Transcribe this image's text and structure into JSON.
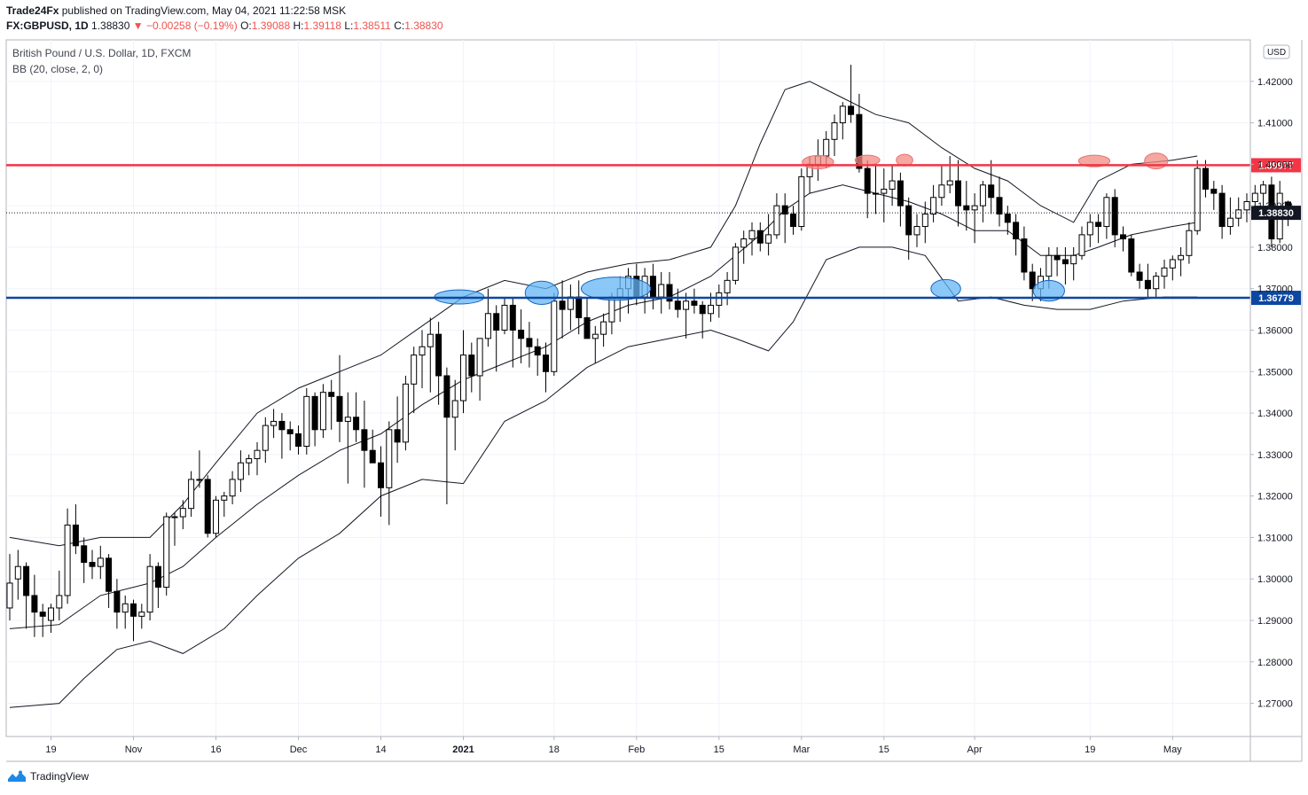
{
  "header": {
    "author": "Trade24Fx",
    "published_text": "published on TradingView.com, May 04, 2021 11:22:58 MSK",
    "symbol": "FX:GBPUSD, 1D",
    "last": "1.38830",
    "change": "▼ −0.00258 (−0.19%)",
    "o_label": "O:",
    "o_value": "1.39088",
    "h_label": "H:",
    "h_value": "1.39118",
    "l_label": "L:",
    "l_value": "1.38511",
    "c_label": "C:",
    "c_value": "1.38830"
  },
  "legend": {
    "title": "British Pound / U.S. Dollar, 1D, FXCM",
    "indicator": "BB (20, close, 2, 0)"
  },
  "footer": {
    "brand": "TradingView"
  },
  "colors": {
    "resistance": "#f23645",
    "support": "#0d47a1",
    "red_marker_fill": "#f28b82",
    "blue_marker_fill": "#64b5f6",
    "bull": "#ffffff",
    "bear": "#000000"
  },
  "chart_data": {
    "type": "candlestick",
    "title": "British Pound / U.S. Dollar, 1D, FXCM",
    "currency_label": "USD",
    "ylim": [
      1.262,
      1.43
    ],
    "y_ticks": [
      "1.27000",
      "1.28000",
      "1.29000",
      "1.30000",
      "1.31000",
      "1.32000",
      "1.33000",
      "1.34000",
      "1.35000",
      "1.36000",
      "1.37000",
      "1.38000",
      "1.39000",
      "1.40000",
      "1.41000",
      "1.42000"
    ],
    "x_ticks": [
      {
        "label": "19",
        "index": 5
      },
      {
        "label": "Nov",
        "index": 15
      },
      {
        "label": "16",
        "index": 25
      },
      {
        "label": "Dec",
        "index": 35
      },
      {
        "label": "14",
        "index": 45
      },
      {
        "label": "2021",
        "index": 55,
        "bold": true
      },
      {
        "label": "18",
        "index": 66
      },
      {
        "label": "Feb",
        "index": 76
      },
      {
        "label": "15",
        "index": 86
      },
      {
        "label": "Mar",
        "index": 96
      },
      {
        "label": "15",
        "index": 106
      },
      {
        "label": "Apr",
        "index": 117
      },
      {
        "label": "19",
        "index": 131
      },
      {
        "label": "May",
        "index": 141
      }
    ],
    "resistance": {
      "label": "1.39977",
      "value": 1.39977
    },
    "support": {
      "label": "1.36779",
      "value": 1.36779
    },
    "last_price": {
      "label": "1.38830",
      "value": 1.3883
    },
    "candles": [
      [
        1.293,
        1.306,
        1.29,
        1.299
      ],
      [
        1.3,
        1.307,
        1.295,
        1.303
      ],
      [
        1.303,
        1.304,
        1.288,
        1.296
      ],
      [
        1.296,
        1.301,
        1.286,
        1.292
      ],
      [
        1.292,
        1.294,
        1.286,
        1.291
      ],
      [
        1.29,
        1.294,
        1.287,
        1.293
      ],
      [
        1.293,
        1.302,
        1.29,
        1.296
      ],
      [
        1.296,
        1.317,
        1.294,
        1.313
      ],
      [
        1.313,
        1.318,
        1.306,
        1.308
      ],
      [
        1.308,
        1.31,
        1.299,
        1.304
      ],
      [
        1.304,
        1.307,
        1.3,
        1.303
      ],
      [
        1.303,
        1.308,
        1.3,
        1.305
      ],
      [
        1.305,
        1.306,
        1.293,
        1.297
      ],
      [
        1.297,
        1.3,
        1.288,
        1.292
      ],
      [
        1.292,
        1.296,
        1.288,
        1.294
      ],
      [
        1.294,
        1.295,
        1.285,
        1.291
      ],
      [
        1.291,
        1.294,
        1.288,
        1.292
      ],
      [
        1.292,
        1.306,
        1.29,
        1.303
      ],
      [
        1.303,
        1.304,
        1.293,
        1.298
      ],
      [
        1.298,
        1.316,
        1.296,
        1.315
      ],
      [
        1.315,
        1.316,
        1.308,
        1.315
      ],
      [
        1.315,
        1.319,
        1.312,
        1.317
      ],
      [
        1.317,
        1.326,
        1.315,
        1.324
      ],
      [
        1.324,
        1.331,
        1.322,
        1.324
      ],
      [
        1.324,
        1.325,
        1.31,
        1.311
      ],
      [
        1.311,
        1.32,
        1.31,
        1.319
      ],
      [
        1.319,
        1.321,
        1.315,
        1.32
      ],
      [
        1.32,
        1.326,
        1.318,
        1.324
      ],
      [
        1.324,
        1.331,
        1.321,
        1.328
      ],
      [
        1.328,
        1.33,
        1.325,
        1.329
      ],
      [
        1.329,
        1.333,
        1.325,
        1.331
      ],
      [
        1.331,
        1.339,
        1.328,
        1.337
      ],
      [
        1.337,
        1.341,
        1.334,
        1.338
      ],
      [
        1.338,
        1.34,
        1.329,
        1.336
      ],
      [
        1.336,
        1.338,
        1.331,
        1.335
      ],
      [
        1.335,
        1.337,
        1.33,
        1.332
      ],
      [
        1.332,
        1.346,
        1.33,
        1.344
      ],
      [
        1.344,
        1.345,
        1.332,
        1.336
      ],
      [
        1.336,
        1.347,
        1.334,
        1.345
      ],
      [
        1.345,
        1.348,
        1.336,
        1.344
      ],
      [
        1.344,
        1.354,
        1.333,
        1.338
      ],
      [
        1.338,
        1.345,
        1.323,
        1.339
      ],
      [
        1.339,
        1.345,
        1.333,
        1.336
      ],
      [
        1.336,
        1.343,
        1.322,
        1.331
      ],
      [
        1.331,
        1.336,
        1.328,
        1.328
      ],
      [
        1.328,
        1.332,
        1.315,
        1.322
      ],
      [
        1.322,
        1.338,
        1.313,
        1.336
      ],
      [
        1.336,
        1.344,
        1.328,
        1.333
      ],
      [
        1.333,
        1.349,
        1.331,
        1.347
      ],
      [
        1.347,
        1.356,
        1.34,
        1.354
      ],
      [
        1.354,
        1.36,
        1.346,
        1.356
      ],
      [
        1.356,
        1.363,
        1.345,
        1.359
      ],
      [
        1.359,
        1.362,
        1.342,
        1.349
      ],
      [
        1.349,
        1.351,
        1.318,
        1.339
      ],
      [
        1.339,
        1.348,
        1.331,
        1.343
      ],
      [
        1.343,
        1.36,
        1.34,
        1.354
      ],
      [
        1.354,
        1.357,
        1.345,
        1.349
      ],
      [
        1.349,
        1.357,
        1.343,
        1.358
      ],
      [
        1.358,
        1.37,
        1.356,
        1.364
      ],
      [
        1.364,
        1.366,
        1.35,
        1.36
      ],
      [
        1.36,
        1.368,
        1.359,
        1.366
      ],
      [
        1.366,
        1.368,
        1.351,
        1.36
      ],
      [
        1.36,
        1.365,
        1.352,
        1.358
      ],
      [
        1.358,
        1.362,
        1.351,
        1.356
      ],
      [
        1.356,
        1.358,
        1.349,
        1.354
      ],
      [
        1.354,
        1.357,
        1.345,
        1.35
      ],
      [
        1.35,
        1.369,
        1.349,
        1.367
      ],
      [
        1.367,
        1.372,
        1.358,
        1.365
      ],
      [
        1.365,
        1.371,
        1.36,
        1.368
      ],
      [
        1.368,
        1.372,
        1.359,
        1.363
      ],
      [
        1.363,
        1.368,
        1.358,
        1.358
      ],
      [
        1.358,
        1.361,
        1.352,
        1.359
      ],
      [
        1.359,
        1.364,
        1.356,
        1.362
      ],
      [
        1.362,
        1.369,
        1.359,
        1.368
      ],
      [
        1.368,
        1.373,
        1.362,
        1.37
      ],
      [
        1.37,
        1.375,
        1.364,
        1.373
      ],
      [
        1.373,
        1.376,
        1.366,
        1.368
      ],
      [
        1.368,
        1.375,
        1.364,
        1.373
      ],
      [
        1.373,
        1.376,
        1.365,
        1.368
      ],
      [
        1.368,
        1.374,
        1.364,
        1.371
      ],
      [
        1.371,
        1.374,
        1.365,
        1.367
      ],
      [
        1.367,
        1.37,
        1.363,
        1.365
      ],
      [
        1.365,
        1.369,
        1.358,
        1.367
      ],
      [
        1.367,
        1.37,
        1.364,
        1.366
      ],
      [
        1.366,
        1.367,
        1.358,
        1.364
      ],
      [
        1.364,
        1.369,
        1.362,
        1.366
      ],
      [
        1.366,
        1.371,
        1.363,
        1.369
      ],
      [
        1.369,
        1.374,
        1.366,
        1.372
      ],
      [
        1.372,
        1.381,
        1.371,
        1.38
      ],
      [
        1.38,
        1.384,
        1.376,
        1.382
      ],
      [
        1.382,
        1.386,
        1.378,
        1.384
      ],
      [
        1.384,
        1.386,
        1.379,
        1.381
      ],
      [
        1.381,
        1.388,
        1.378,
        1.383
      ],
      [
        1.383,
        1.393,
        1.382,
        1.39
      ],
      [
        1.39,
        1.393,
        1.381,
        1.388
      ],
      [
        1.388,
        1.39,
        1.383,
        1.385
      ],
      [
        1.385,
        1.399,
        1.384,
        1.397
      ],
      [
        1.397,
        1.402,
        1.393,
        1.4
      ],
      [
        1.4,
        1.406,
        1.396,
        1.402
      ],
      [
        1.402,
        1.408,
        1.399,
        1.406
      ],
      [
        1.406,
        1.412,
        1.402,
        1.41
      ],
      [
        1.41,
        1.415,
        1.406,
        1.414
      ],
      [
        1.414,
        1.424,
        1.41,
        1.412
      ],
      [
        1.412,
        1.417,
        1.398,
        1.399
      ],
      [
        1.399,
        1.401,
        1.387,
        1.393
      ],
      [
        1.393,
        1.4,
        1.388,
        1.393
      ],
      [
        1.393,
        1.399,
        1.386,
        1.394
      ],
      [
        1.394,
        1.4,
        1.39,
        1.396
      ],
      [
        1.396,
        1.398,
        1.385,
        1.39
      ],
      [
        1.39,
        1.392,
        1.377,
        1.383
      ],
      [
        1.383,
        1.388,
        1.38,
        1.385
      ],
      [
        1.385,
        1.391,
        1.381,
        1.388
      ],
      [
        1.388,
        1.395,
        1.386,
        1.392
      ],
      [
        1.392,
        1.4,
        1.39,
        1.395
      ],
      [
        1.395,
        1.402,
        1.393,
        1.396
      ],
      [
        1.396,
        1.401,
        1.385,
        1.39
      ],
      [
        1.39,
        1.396,
        1.384,
        1.389
      ],
      [
        1.389,
        1.393,
        1.381,
        1.39
      ],
      [
        1.39,
        1.396,
        1.386,
        1.395
      ],
      [
        1.395,
        1.401,
        1.388,
        1.392
      ],
      [
        1.392,
        1.397,
        1.385,
        1.388
      ],
      [
        1.388,
        1.39,
        1.383,
        1.386
      ],
      [
        1.386,
        1.388,
        1.378,
        1.382
      ],
      [
        1.382,
        1.385,
        1.372,
        1.374
      ],
      [
        1.374,
        1.376,
        1.367,
        1.37
      ],
      [
        1.37,
        1.375,
        1.367,
        1.373
      ],
      [
        1.373,
        1.38,
        1.37,
        1.378
      ],
      [
        1.378,
        1.38,
        1.373,
        1.377
      ],
      [
        1.377,
        1.38,
        1.371,
        1.376
      ],
      [
        1.376,
        1.38,
        1.372,
        1.378
      ],
      [
        1.378,
        1.385,
        1.377,
        1.383
      ],
      [
        1.383,
        1.388,
        1.38,
        1.386
      ],
      [
        1.386,
        1.388,
        1.381,
        1.385
      ],
      [
        1.385,
        1.393,
        1.382,
        1.392
      ],
      [
        1.392,
        1.394,
        1.38,
        1.383
      ],
      [
        1.383,
        1.385,
        1.379,
        1.382
      ],
      [
        1.382,
        1.383,
        1.373,
        1.374
      ],
      [
        1.374,
        1.376,
        1.37,
        1.372
      ],
      [
        1.372,
        1.376,
        1.368,
        1.37
      ],
      [
        1.37,
        1.374,
        1.368,
        1.373
      ],
      [
        1.373,
        1.377,
        1.37,
        1.375
      ],
      [
        1.375,
        1.378,
        1.372,
        1.377
      ],
      [
        1.377,
        1.38,
        1.373,
        1.378
      ],
      [
        1.378,
        1.386,
        1.376,
        1.384
      ],
      [
        1.384,
        1.401,
        1.383,
        1.399
      ],
      [
        1.399,
        1.401,
        1.392,
        1.394
      ],
      [
        1.394,
        1.396,
        1.389,
        1.393
      ],
      [
        1.393,
        1.395,
        1.382,
        1.385
      ],
      [
        1.385,
        1.392,
        1.383,
        1.387
      ],
      [
        1.387,
        1.392,
        1.385,
        1.389
      ],
      [
        1.389,
        1.393,
        1.386,
        1.391
      ],
      [
        1.391,
        1.395,
        1.388,
        1.393
      ],
      [
        1.393,
        1.396,
        1.39,
        1.395
      ],
      [
        1.395,
        1.397,
        1.38,
        1.382
      ],
      [
        1.382,
        1.396,
        1.381,
        1.393
      ],
      [
        1.3909,
        1.3912,
        1.3851,
        1.3883
      ]
    ],
    "bb_upper": [
      [
        0,
        1.31
      ],
      [
        6,
        1.308
      ],
      [
        11,
        1.31
      ],
      [
        17,
        1.31
      ],
      [
        21,
        1.318
      ],
      [
        25,
        1.328
      ],
      [
        30,
        1.34
      ],
      [
        35,
        1.346
      ],
      [
        40,
        1.35
      ],
      [
        45,
        1.354
      ],
      [
        50,
        1.361
      ],
      [
        55,
        1.368
      ],
      [
        60,
        1.372
      ],
      [
        65,
        1.37
      ],
      [
        70,
        1.374
      ],
      [
        75,
        1.376
      ],
      [
        80,
        1.377
      ],
      [
        85,
        1.38
      ],
      [
        88,
        1.39
      ],
      [
        91,
        1.405
      ],
      [
        94,
        1.418
      ],
      [
        97,
        1.42
      ],
      [
        101,
        1.416
      ],
      [
        105,
        1.412
      ],
      [
        109,
        1.41
      ],
      [
        113,
        1.404
      ],
      [
        117,
        1.399
      ],
      [
        121,
        1.396
      ],
      [
        125,
        1.39
      ],
      [
        129,
        1.386
      ],
      [
        132,
        1.396
      ],
      [
        136,
        1.4
      ],
      [
        141,
        1.401
      ],
      [
        144,
        1.402
      ]
    ],
    "bb_middle": [
      [
        0,
        1.288
      ],
      [
        6,
        1.289
      ],
      [
        11,
        1.296
      ],
      [
        17,
        1.299
      ],
      [
        21,
        1.303
      ],
      [
        25,
        1.31
      ],
      [
        30,
        1.318
      ],
      [
        35,
        1.325
      ],
      [
        40,
        1.331
      ],
      [
        45,
        1.335
      ],
      [
        50,
        1.342
      ],
      [
        55,
        1.348
      ],
      [
        60,
        1.352
      ],
      [
        65,
        1.356
      ],
      [
        70,
        1.362
      ],
      [
        75,
        1.366
      ],
      [
        80,
        1.368
      ],
      [
        85,
        1.373
      ],
      [
        88,
        1.378
      ],
      [
        91,
        1.383
      ],
      [
        94,
        1.389
      ],
      [
        97,
        1.393
      ],
      [
        101,
        1.395
      ],
      [
        105,
        1.393
      ],
      [
        109,
        1.391
      ],
      [
        113,
        1.388
      ],
      [
        117,
        1.384
      ],
      [
        121,
        1.384
      ],
      [
        125,
        1.378
      ],
      [
        129,
        1.378
      ],
      [
        132,
        1.38
      ],
      [
        136,
        1.383
      ],
      [
        141,
        1.385
      ],
      [
        144,
        1.386
      ]
    ],
    "bb_lower": [
      [
        0,
        1.269
      ],
      [
        6,
        1.27
      ],
      [
        9,
        1.276
      ],
      [
        13,
        1.283
      ],
      [
        17,
        1.285
      ],
      [
        21,
        1.282
      ],
      [
        26,
        1.288
      ],
      [
        30,
        1.296
      ],
      [
        35,
        1.305
      ],
      [
        40,
        1.311
      ],
      [
        45,
        1.32
      ],
      [
        50,
        1.324
      ],
      [
        55,
        1.323
      ],
      [
        60,
        1.338
      ],
      [
        65,
        1.343
      ],
      [
        70,
        1.351
      ],
      [
        75,
        1.356
      ],
      [
        80,
        1.358
      ],
      [
        85,
        1.36
      ],
      [
        88,
        1.358
      ],
      [
        92,
        1.355
      ],
      [
        95,
        1.362
      ],
      [
        99,
        1.377
      ],
      [
        103,
        1.38
      ],
      [
        107,
        1.38
      ],
      [
        111,
        1.378
      ],
      [
        115,
        1.367
      ],
      [
        119,
        1.368
      ],
      [
        123,
        1.366
      ],
      [
        127,
        1.365
      ],
      [
        131,
        1.365
      ],
      [
        135,
        1.367
      ],
      [
        140,
        1.368
      ],
      [
        144,
        1.368
      ]
    ],
    "markers": [
      {
        "color": "blue",
        "cx_index": 54.5,
        "cy": 1.368,
        "rx_bars": 3,
        "ry": 0.0017
      },
      {
        "color": "blue",
        "cx_index": 64.5,
        "cy": 1.369,
        "rx_bars": 2,
        "ry": 0.0028
      },
      {
        "color": "blue",
        "cx_index": 73.5,
        "cy": 1.37,
        "rx_bars": 4.2,
        "ry": 0.0028
      },
      {
        "color": "blue",
        "cx_index": 113.5,
        "cy": 1.37,
        "rx_bars": 1.8,
        "ry": 0.0022
      },
      {
        "color": "blue",
        "cx_index": 126,
        "cy": 1.3695,
        "rx_bars": 1.9,
        "ry": 0.0025
      },
      {
        "color": "red",
        "cx_index": 98,
        "cy": 1.4005,
        "rx_bars": 1.9,
        "ry": 0.0016
      },
      {
        "color": "red",
        "cx_index": 104,
        "cy": 1.401,
        "rx_bars": 1.5,
        "ry": 0.0012
      },
      {
        "color": "red",
        "cx_index": 108.5,
        "cy": 1.401,
        "rx_bars": 1,
        "ry": 0.0014
      },
      {
        "color": "red",
        "cx_index": 131.5,
        "cy": 1.4008,
        "rx_bars": 1.9,
        "ry": 0.0014
      },
      {
        "color": "red",
        "cx_index": 139,
        "cy": 1.4008,
        "rx_bars": 1.4,
        "ry": 0.0019
      }
    ]
  }
}
